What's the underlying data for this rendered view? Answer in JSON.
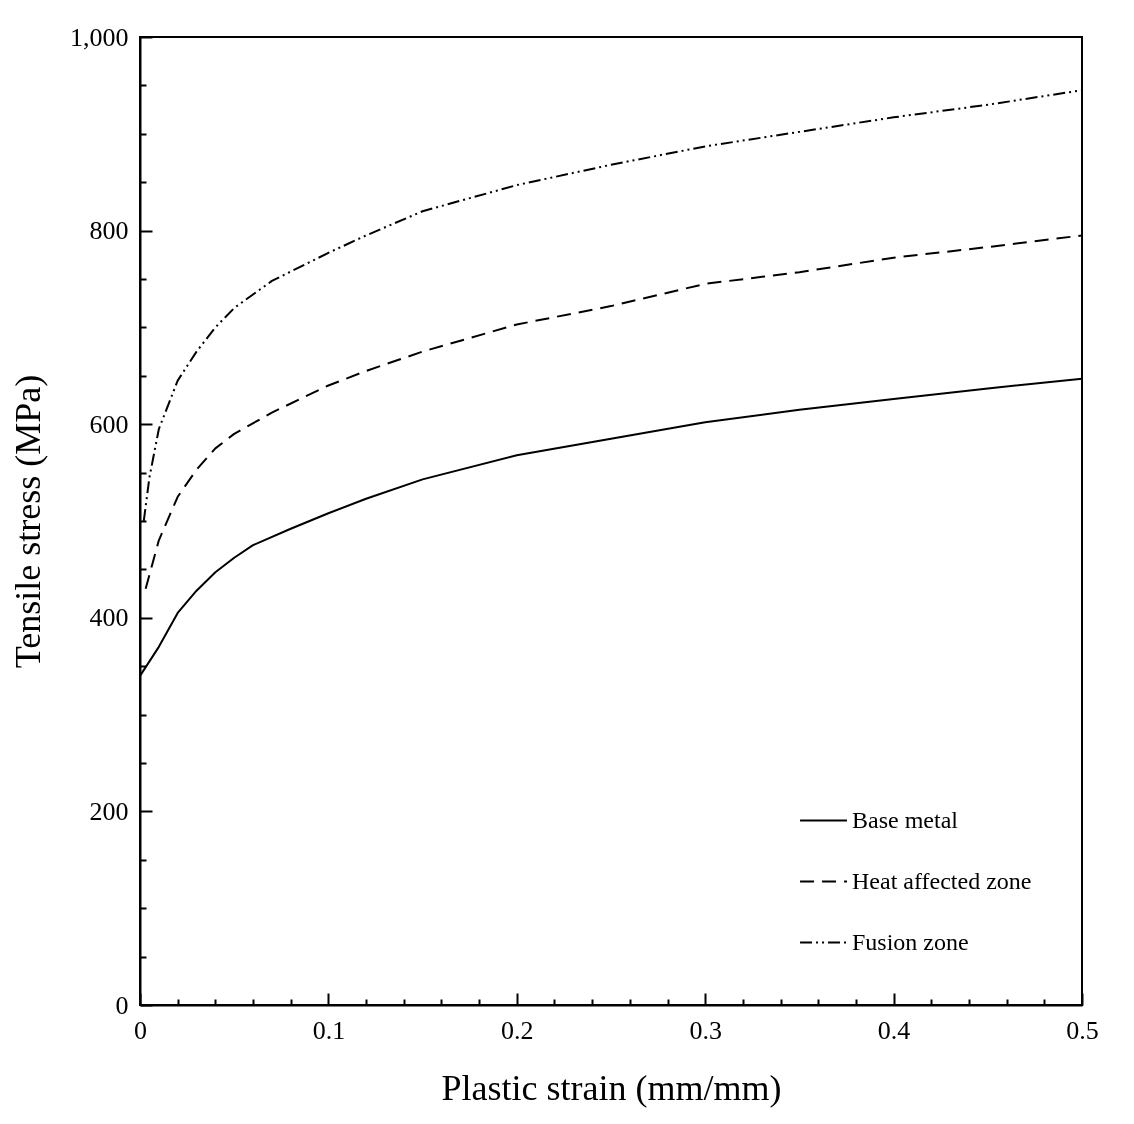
{
  "chart_data": {
    "type": "line",
    "xlabel": "Plastic strain (mm/mm)",
    "ylabel": "Tensile stress (MPa)",
    "xlim": [
      0,
      0.5
    ],
    "ylim": [
      0,
      1000
    ],
    "xticks": [
      0,
      {
        "value": 0.02,
        "label": null
      },
      {
        "value": 0.04,
        "label": null
      },
      {
        "value": 0.06,
        "label": null
      },
      {
        "value": 0.08,
        "label": null
      },
      0.1,
      {
        "value": 0.12,
        "label": null
      },
      {
        "value": 0.14,
        "label": null
      },
      {
        "value": 0.16,
        "label": null
      },
      {
        "value": 0.18,
        "label": null
      },
      0.2,
      {
        "value": 0.22,
        "label": null
      },
      {
        "value": 0.24,
        "label": null
      },
      {
        "value": 0.26,
        "label": null
      },
      {
        "value": 0.28,
        "label": null
      },
      0.3,
      {
        "value": 0.32,
        "label": null
      },
      {
        "value": 0.34,
        "label": null
      },
      {
        "value": 0.36,
        "label": null
      },
      {
        "value": 0.38,
        "label": null
      },
      0.4,
      {
        "value": 0.42,
        "label": null
      },
      {
        "value": 0.44,
        "label": null
      },
      {
        "value": 0.46,
        "label": null
      },
      {
        "value": 0.48,
        "label": null
      },
      0.5
    ],
    "yticks": [
      0,
      {
        "value": 50,
        "label": null
      },
      {
        "value": 100,
        "label": null
      },
      {
        "value": 150,
        "label": null
      },
      200,
      {
        "value": 250,
        "label": null
      },
      {
        "value": 300,
        "label": null
      },
      {
        "value": 350,
        "label": null
      },
      400,
      {
        "value": 450,
        "label": null
      },
      {
        "value": 500,
        "label": null
      },
      {
        "value": 550,
        "label": null
      },
      600,
      {
        "value": 650,
        "label": null
      },
      {
        "value": 700,
        "label": null
      },
      {
        "value": 750,
        "label": null
      },
      800,
      {
        "value": 850,
        "label": null
      },
      {
        "value": 900,
        "label": null
      },
      {
        "value": 950,
        "label": null
      },
      {
        "value": 1000,
        "label": "1,000"
      }
    ],
    "legend": "bottom right",
    "grid": false,
    "marker": "none",
    "series": [
      {
        "name": "Base metal",
        "color": "#000000",
        "line_style": "solid",
        "x": [
          0,
          0.005,
          0.01,
          0.02,
          0.03,
          0.04,
          0.05,
          0.06,
          0.08,
          0.1,
          0.12,
          0.15,
          0.2,
          0.25,
          0.3,
          0.35,
          0.4,
          0.45,
          0.5
        ],
        "values": [
          340,
          355,
          370,
          405,
          428,
          447,
          462,
          475,
          492,
          508,
          523,
          543,
          568,
          585,
          602,
          615,
          626,
          637,
          647
        ]
      },
      {
        "name": "Heat affected zone",
        "color": "#000000",
        "line_style": "dashed",
        "x": [
          0.003,
          0.01,
          0.02,
          0.03,
          0.04,
          0.05,
          0.07,
          0.1,
          0.12,
          0.15,
          0.2,
          0.25,
          0.3,
          0.35,
          0.4,
          0.45,
          0.5
        ],
        "values": [
          430,
          480,
          525,
          553,
          575,
          590,
          612,
          640,
          655,
          675,
          703,
          722,
          745,
          757,
          772,
          783,
          795
        ]
      },
      {
        "name": "Fusion zone",
        "color": "#000000",
        "line_style": "dotted",
        "x": [
          0.002,
          0.005,
          0.01,
          0.02,
          0.03,
          0.04,
          0.05,
          0.07,
          0.1,
          0.12,
          0.15,
          0.2,
          0.25,
          0.3,
          0.35,
          0.4,
          0.45,
          0.5
        ],
        "values": [
          500,
          545,
          595,
          645,
          675,
          700,
          720,
          748,
          777,
          795,
          820,
          847,
          868,
          887,
          902,
          917,
          930,
          945
        ]
      }
    ]
  }
}
